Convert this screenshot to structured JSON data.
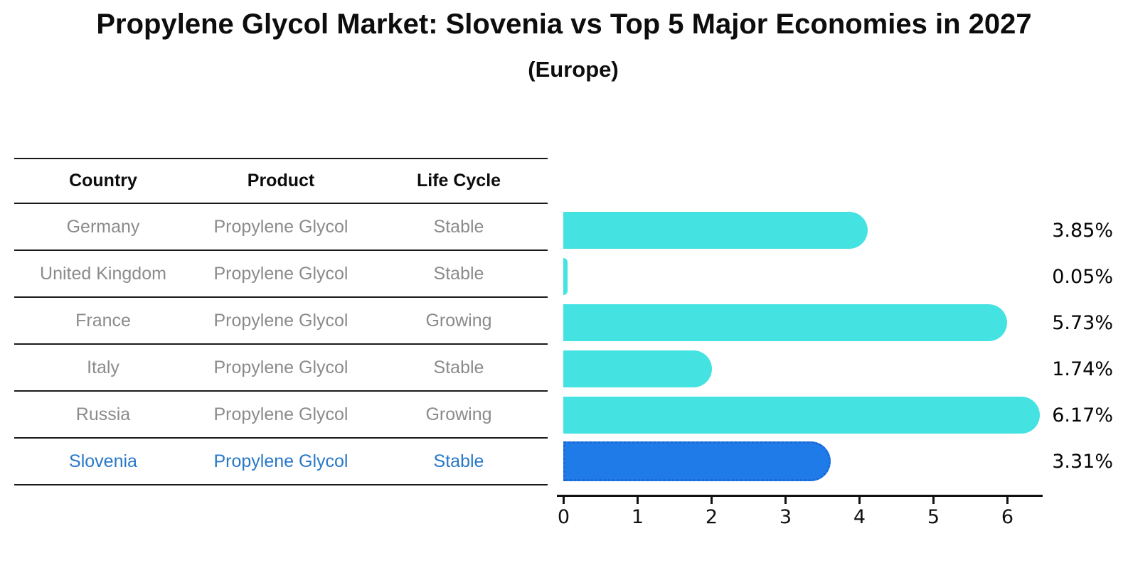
{
  "title": "Propylene Glycol Market: Slovenia vs Top 5 Major Economies in 2027",
  "subtitle": "(Europe)",
  "table": {
    "headers": [
      "Country",
      "Product",
      "Life Cycle"
    ],
    "rows": [
      {
        "country": "Germany",
        "product": "Propylene Glycol",
        "life_cycle": "Stable",
        "highlight": false
      },
      {
        "country": "United Kingdom",
        "product": "Propylene Glycol",
        "life_cycle": "Stable",
        "highlight": false
      },
      {
        "country": "France",
        "product": "Propylene Glycol",
        "life_cycle": "Growing",
        "highlight": false
      },
      {
        "country": "Italy",
        "product": "Propylene Glycol",
        "life_cycle": "Stable",
        "highlight": false
      },
      {
        "country": "Russia",
        "product": "Propylene Glycol",
        "life_cycle": "Growing",
        "highlight": false
      },
      {
        "country": "Slovenia",
        "product": "Propylene Glycol",
        "life_cycle": "Stable",
        "highlight": true
      }
    ]
  },
  "chart_data": {
    "type": "bar",
    "orientation": "horizontal",
    "title": "Propylene Glycol Market: Slovenia vs Top 5 Major Economies in 2027 (Europe)",
    "categories": [
      "Germany",
      "United Kingdom",
      "France",
      "Italy",
      "Russia",
      "Slovenia"
    ],
    "values": [
      3.85,
      0.05,
      5.73,
      1.74,
      6.17,
      3.31
    ],
    "value_labels": [
      "3.85%",
      "0.05%",
      "5.73%",
      "1.74%",
      "6.17%",
      "3.31%"
    ],
    "xticks": [
      "0",
      "1",
      "2",
      "3",
      "4",
      "5",
      "6"
    ],
    "xlim": [
      0,
      6.5
    ],
    "grid": false,
    "legend": false,
    "highlight_index": 5,
    "bar_color": "#45E2E2",
    "highlight_bar_color": "#1F7BE8"
  },
  "colors": {
    "bar": "#45E2E2",
    "highlight_bar": "#1F7BE8",
    "highlight_text": "#2878C8",
    "row_text": "#8B8B8B",
    "header_text": "#0D0D0D",
    "axis": "#111111",
    "background": "#FFFFFF"
  }
}
